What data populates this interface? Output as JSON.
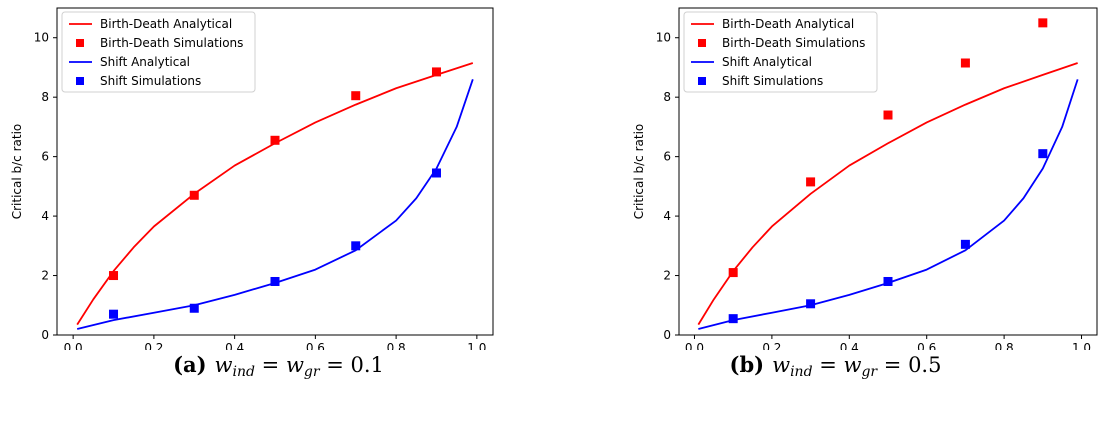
{
  "chart_data": [
    {
      "type": "line",
      "xlabel": "Migration Rate",
      "ylabel": "Critical b/c ratio",
      "xlim": [
        -0.04,
        1.04
      ],
      "ylim": [
        0,
        11
      ],
      "xticks": [
        "0.0",
        "0.2",
        "0.4",
        "0.6",
        "0.8",
        "1.0"
      ],
      "xtick_values": [
        0,
        0.2,
        0.4,
        0.6,
        0.8,
        1.0
      ],
      "yticks": [
        "0",
        "2",
        "4",
        "6",
        "8",
        "10"
      ],
      "ytick_values": [
        0,
        2,
        4,
        6,
        8,
        10
      ],
      "grid": false,
      "legend_position": "top-left",
      "caption": {
        "tag": "(a)",
        "math": "w",
        "sub1": "ind",
        "eq": " = w",
        "sub2": "gr",
        "value": " = 0.1"
      },
      "series": [
        {
          "name": "Birth-Death Analytical",
          "kind": "line",
          "color": "#ff0000",
          "x": [
            0.01,
            0.05,
            0.1,
            0.15,
            0.2,
            0.3,
            0.4,
            0.5,
            0.6,
            0.7,
            0.8,
            0.9,
            0.99
          ],
          "y": [
            0.35,
            1.2,
            2.15,
            2.95,
            3.65,
            4.75,
            5.7,
            6.45,
            7.15,
            7.75,
            8.3,
            8.75,
            9.15
          ]
        },
        {
          "name": "Birth-Death Simulations",
          "kind": "marker",
          "color": "#ff0000",
          "x": [
            0.1,
            0.3,
            0.5,
            0.7,
            0.9
          ],
          "y": [
            2.0,
            4.7,
            6.55,
            8.05,
            8.85
          ]
        },
        {
          "name": "Shift Analytical",
          "kind": "line",
          "color": "#0000ff",
          "x": [
            0.01,
            0.1,
            0.2,
            0.3,
            0.4,
            0.5,
            0.6,
            0.7,
            0.8,
            0.85,
            0.9,
            0.95,
            0.99
          ],
          "y": [
            0.2,
            0.5,
            0.75,
            1.0,
            1.35,
            1.75,
            2.2,
            2.85,
            3.85,
            4.6,
            5.6,
            7.0,
            8.6
          ]
        },
        {
          "name": "Shift Simulations",
          "kind": "marker",
          "color": "#0000ff",
          "x": [
            0.1,
            0.3,
            0.5,
            0.7,
            0.9
          ],
          "y": [
            0.7,
            0.9,
            1.8,
            3.0,
            5.45
          ]
        }
      ]
    },
    {
      "type": "line",
      "xlabel": "Migration Rate",
      "ylabel": "Critical b/c ratio",
      "xlim": [
        -0.04,
        1.04
      ],
      "ylim": [
        0,
        11
      ],
      "xticks": [
        "0.0",
        "0.2",
        "0.4",
        "0.6",
        "0.8",
        "1.0"
      ],
      "xtick_values": [
        0,
        0.2,
        0.4,
        0.6,
        0.8,
        1.0
      ],
      "yticks": [
        "0",
        "2",
        "4",
        "6",
        "8",
        "10"
      ],
      "ytick_values": [
        0,
        2,
        4,
        6,
        8,
        10
      ],
      "grid": false,
      "legend_position": "top-left",
      "caption": {
        "tag": "(b)",
        "math": "w",
        "sub1": "ind",
        "eq": " = w",
        "sub2": "gr",
        "value": " = 0.5"
      },
      "series": [
        {
          "name": "Birth-Death Analytical",
          "kind": "line",
          "color": "#ff0000",
          "x": [
            0.01,
            0.05,
            0.1,
            0.15,
            0.2,
            0.3,
            0.4,
            0.5,
            0.6,
            0.7,
            0.8,
            0.9,
            0.99
          ],
          "y": [
            0.35,
            1.2,
            2.15,
            2.95,
            3.65,
            4.75,
            5.7,
            6.45,
            7.15,
            7.75,
            8.3,
            8.75,
            9.15
          ]
        },
        {
          "name": "Birth-Death Simulations",
          "kind": "marker",
          "color": "#ff0000",
          "x": [
            0.1,
            0.3,
            0.5,
            0.7,
            0.9
          ],
          "y": [
            2.1,
            5.15,
            7.4,
            9.15,
            10.5
          ]
        },
        {
          "name": "Shift Analytical",
          "kind": "line",
          "color": "#0000ff",
          "x": [
            0.01,
            0.1,
            0.2,
            0.3,
            0.4,
            0.5,
            0.6,
            0.7,
            0.8,
            0.85,
            0.9,
            0.95,
            0.99
          ],
          "y": [
            0.2,
            0.5,
            0.75,
            1.0,
            1.35,
            1.75,
            2.2,
            2.85,
            3.85,
            4.6,
            5.6,
            7.0,
            8.6
          ]
        },
        {
          "name": "Shift Simulations",
          "kind": "marker",
          "color": "#0000ff",
          "x": [
            0.1,
            0.3,
            0.5,
            0.7,
            0.9
          ],
          "y": [
            0.55,
            1.05,
            1.8,
            3.05,
            6.1
          ]
        }
      ]
    }
  ]
}
